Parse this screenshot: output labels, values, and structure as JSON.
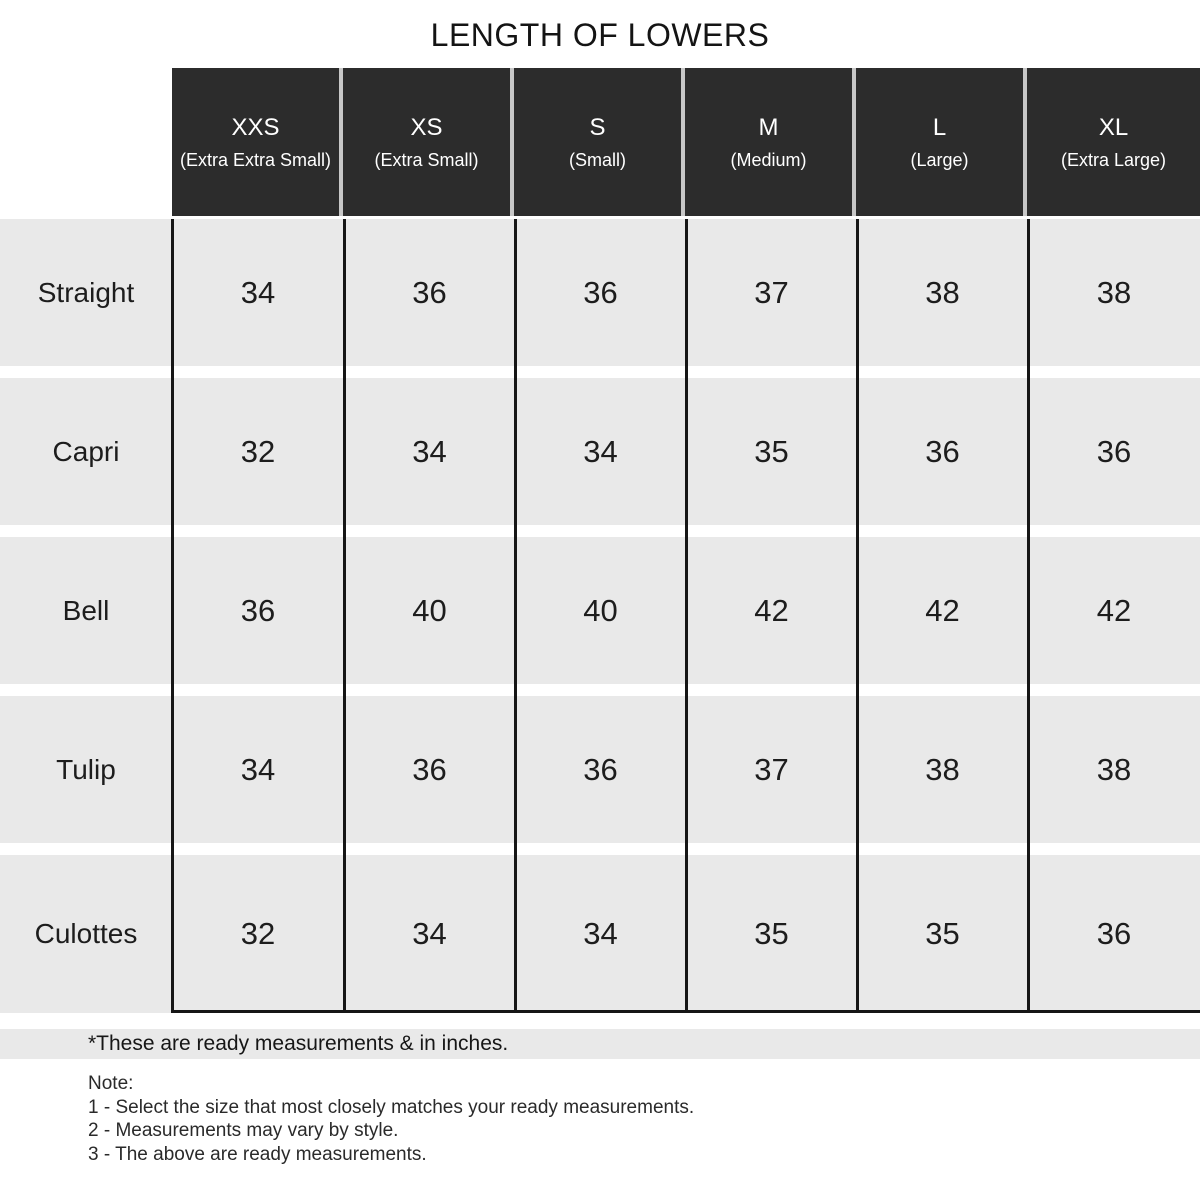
{
  "title": "LENGTH OF LOWERS",
  "table": {
    "columns": [
      {
        "size": "XXS",
        "full": "(Extra Extra Small)"
      },
      {
        "size": "XS",
        "full": "(Extra Small)"
      },
      {
        "size": "S",
        "full": "(Small)"
      },
      {
        "size": "M",
        "full": "(Medium)"
      },
      {
        "size": "L",
        "full": "(Large)"
      },
      {
        "size": "XL",
        "full": "(Extra Large)"
      }
    ],
    "rows": [
      {
        "label": "Straight",
        "values": [
          "34",
          "36",
          "36",
          "37",
          "38",
          "38"
        ]
      },
      {
        "label": "Capri",
        "values": [
          "32",
          "34",
          "34",
          "35",
          "36",
          "36"
        ]
      },
      {
        "label": "Bell",
        "values": [
          "36",
          "40",
          "40",
          "42",
          "42",
          "42"
        ]
      },
      {
        "label": "Tulip",
        "values": [
          "34",
          "36",
          "36",
          "37",
          "38",
          "38"
        ]
      },
      {
        "label": "Culottes",
        "values": [
          "32",
          "34",
          "34",
          "35",
          "35",
          "36"
        ]
      }
    ],
    "unit_note": "inches"
  },
  "footnote": "*These are ready measurements & in inches.",
  "note": {
    "heading": "Note:",
    "items": [
      "1 - Select the size that most closely matches your ready measurements.",
      "2 - Measurements may vary by style.",
      "3 - The above are ready measurements."
    ]
  },
  "colors": {
    "header_bg": "#2c2c2c",
    "header_text": "#ffffff",
    "row_bg": "#e9e9e9",
    "grid_border": "#161616",
    "header_divider": "#c8c8c8",
    "text": "#1d1d1d",
    "background": "#ffffff"
  }
}
